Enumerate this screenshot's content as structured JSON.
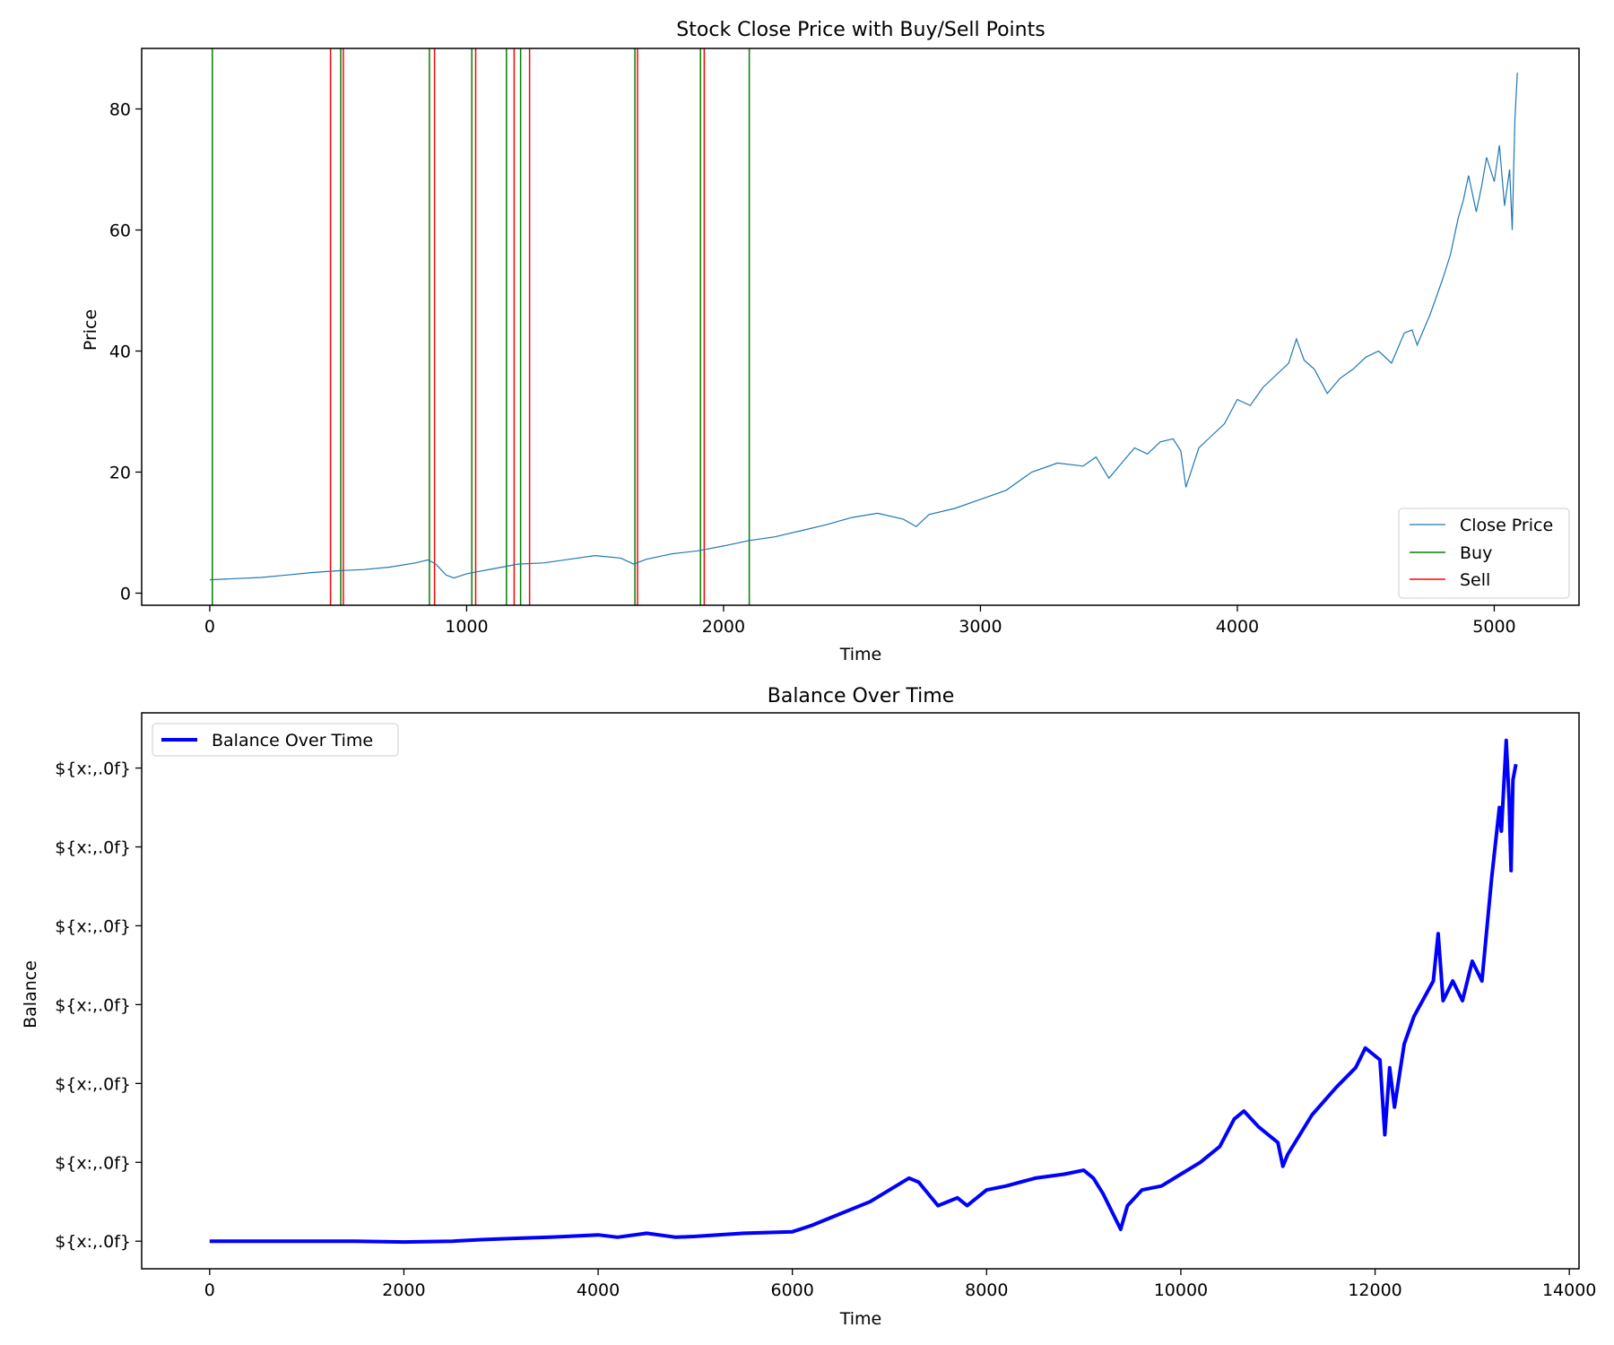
{
  "chart_data": [
    {
      "type": "line",
      "title": "Stock Close Price with Buy/Sell Points",
      "xlabel": "Time",
      "ylabel": "Price",
      "xlim": [
        -265,
        5330
      ],
      "ylim": [
        -2,
        90
      ],
      "xticks": [
        0,
        1000,
        2000,
        3000,
        4000,
        5000
      ],
      "yticks": [
        0,
        20,
        40,
        60,
        80
      ],
      "grid": false,
      "legend_position": "lower-right",
      "series": [
        {
          "name": "Close Price",
          "color": "#1f77b4",
          "x": [
            0,
            100,
            200,
            300,
            400,
            500,
            600,
            700,
            800,
            850,
            880,
            920,
            950,
            1000,
            1050,
            1100,
            1200,
            1300,
            1400,
            1500,
            1600,
            1650,
            1700,
            1800,
            1900,
            2000,
            2100,
            2200,
            2300,
            2400,
            2500,
            2600,
            2700,
            2750,
            2800,
            2900,
            3000,
            3100,
            3200,
            3300,
            3400,
            3450,
            3500,
            3550,
            3600,
            3650,
            3700,
            3750,
            3780,
            3800,
            3850,
            3900,
            3950,
            4000,
            4050,
            4100,
            4150,
            4200,
            4230,
            4260,
            4300,
            4350,
            4400,
            4450,
            4500,
            4550,
            4600,
            4650,
            4680,
            4700,
            4750,
            4800,
            4830,
            4860,
            4880,
            4900,
            4930,
            4950,
            4970,
            5000,
            5020,
            5040,
            5060,
            5070,
            5080,
            5090
          ],
          "values": [
            2.2,
            2.4,
            2.6,
            3.0,
            3.4,
            3.7,
            3.9,
            4.3,
            5.0,
            5.5,
            4.8,
            3.0,
            2.5,
            3.2,
            3.6,
            4.0,
            4.8,
            5.0,
            5.6,
            6.2,
            5.8,
            4.8,
            5.6,
            6.5,
            7.0,
            7.8,
            8.7,
            9.3,
            10.3,
            11.3,
            12.5,
            13.2,
            12.2,
            11.0,
            13.0,
            14.0,
            15.5,
            17.0,
            20.0,
            21.5,
            21.0,
            22.5,
            19.0,
            21.5,
            24.0,
            23.0,
            25.0,
            25.5,
            23.5,
            17.5,
            24.0,
            26.0,
            28.0,
            32.0,
            31.0,
            34.0,
            36.0,
            38.0,
            42.0,
            38.5,
            37.0,
            33.0,
            35.5,
            37.0,
            39.0,
            40.0,
            38.0,
            43.0,
            43.5,
            41.0,
            46.0,
            52.0,
            56.0,
            62.0,
            65.0,
            69.0,
            63.0,
            67.0,
            72.0,
            68.0,
            74.0,
            64.0,
            70.0,
            60.0,
            78.0,
            86.0
          ]
        },
        {
          "name": "Buy",
          "color": "#008000",
          "x": [
            10,
            510,
            855,
            1020,
            1155,
            1210,
            1655,
            1910,
            2100
          ]
        },
        {
          "name": "Sell",
          "color": "#ff0000",
          "x": [
            470,
            520,
            875,
            1035,
            1185,
            1245,
            1665,
            1925
          ]
        }
      ]
    },
    {
      "type": "line",
      "title": "Balance Over Time",
      "xlabel": "Time",
      "ylabel": "Balance",
      "xlim": [
        -700,
        14100
      ],
      "ylim": [
        -0.35,
        6.7
      ],
      "xticks": [
        0,
        2000,
        4000,
        6000,
        8000,
        10000,
        12000,
        14000
      ],
      "ytick_values": [
        0,
        1,
        2,
        3,
        4,
        5,
        6
      ],
      "ytick_labels": [
        "${x:,.0f}",
        "${x:,.0f}",
        "${x:,.0f}",
        "${x:,.0f}",
        "${x:,.0f}",
        "${x:,.0f}",
        "${x:,.0f}"
      ],
      "grid": false,
      "legend_position": "upper-left",
      "series": [
        {
          "name": "Balance Over Time",
          "color": "#0000ff",
          "x": [
            0,
            500,
            1000,
            1500,
            2000,
            2500,
            2800,
            3000,
            3500,
            4000,
            4200,
            4500,
            4800,
            5000,
            5500,
            6000,
            6200,
            6500,
            6800,
            7000,
            7200,
            7300,
            7400,
            7500,
            7700,
            7800,
            8000,
            8200,
            8500,
            8800,
            9000,
            9100,
            9200,
            9300,
            9380,
            9450,
            9600,
            9800,
            10000,
            10200,
            10400,
            10550,
            10650,
            10800,
            11000,
            11050,
            11100,
            11200,
            11350,
            11600,
            11800,
            11900,
            12050,
            12100,
            12150,
            12200,
            12300,
            12400,
            12600,
            12650,
            12700,
            12800,
            12900,
            13000,
            13100,
            13200,
            13280,
            13300,
            13350,
            13380,
            13400,
            13420,
            13450
          ],
          "values": [
            0.0,
            0.0,
            0.0,
            0.0,
            -0.01,
            0.0,
            0.02,
            0.03,
            0.05,
            0.08,
            0.05,
            0.1,
            0.05,
            0.06,
            0.1,
            0.12,
            0.2,
            0.35,
            0.5,
            0.65,
            0.8,
            0.75,
            0.6,
            0.45,
            0.55,
            0.45,
            0.65,
            0.7,
            0.8,
            0.85,
            0.9,
            0.8,
            0.6,
            0.35,
            0.15,
            0.45,
            0.65,
            0.7,
            0.85,
            1.0,
            1.2,
            1.55,
            1.65,
            1.45,
            1.25,
            0.95,
            1.1,
            1.3,
            1.6,
            1.95,
            2.2,
            2.45,
            2.3,
            1.35,
            2.2,
            1.7,
            2.5,
            2.85,
            3.3,
            3.9,
            3.05,
            3.3,
            3.05,
            3.55,
            3.3,
            4.6,
            5.5,
            5.2,
            6.35,
            5.6,
            4.7,
            5.85,
            6.05
          ]
        }
      ]
    }
  ]
}
